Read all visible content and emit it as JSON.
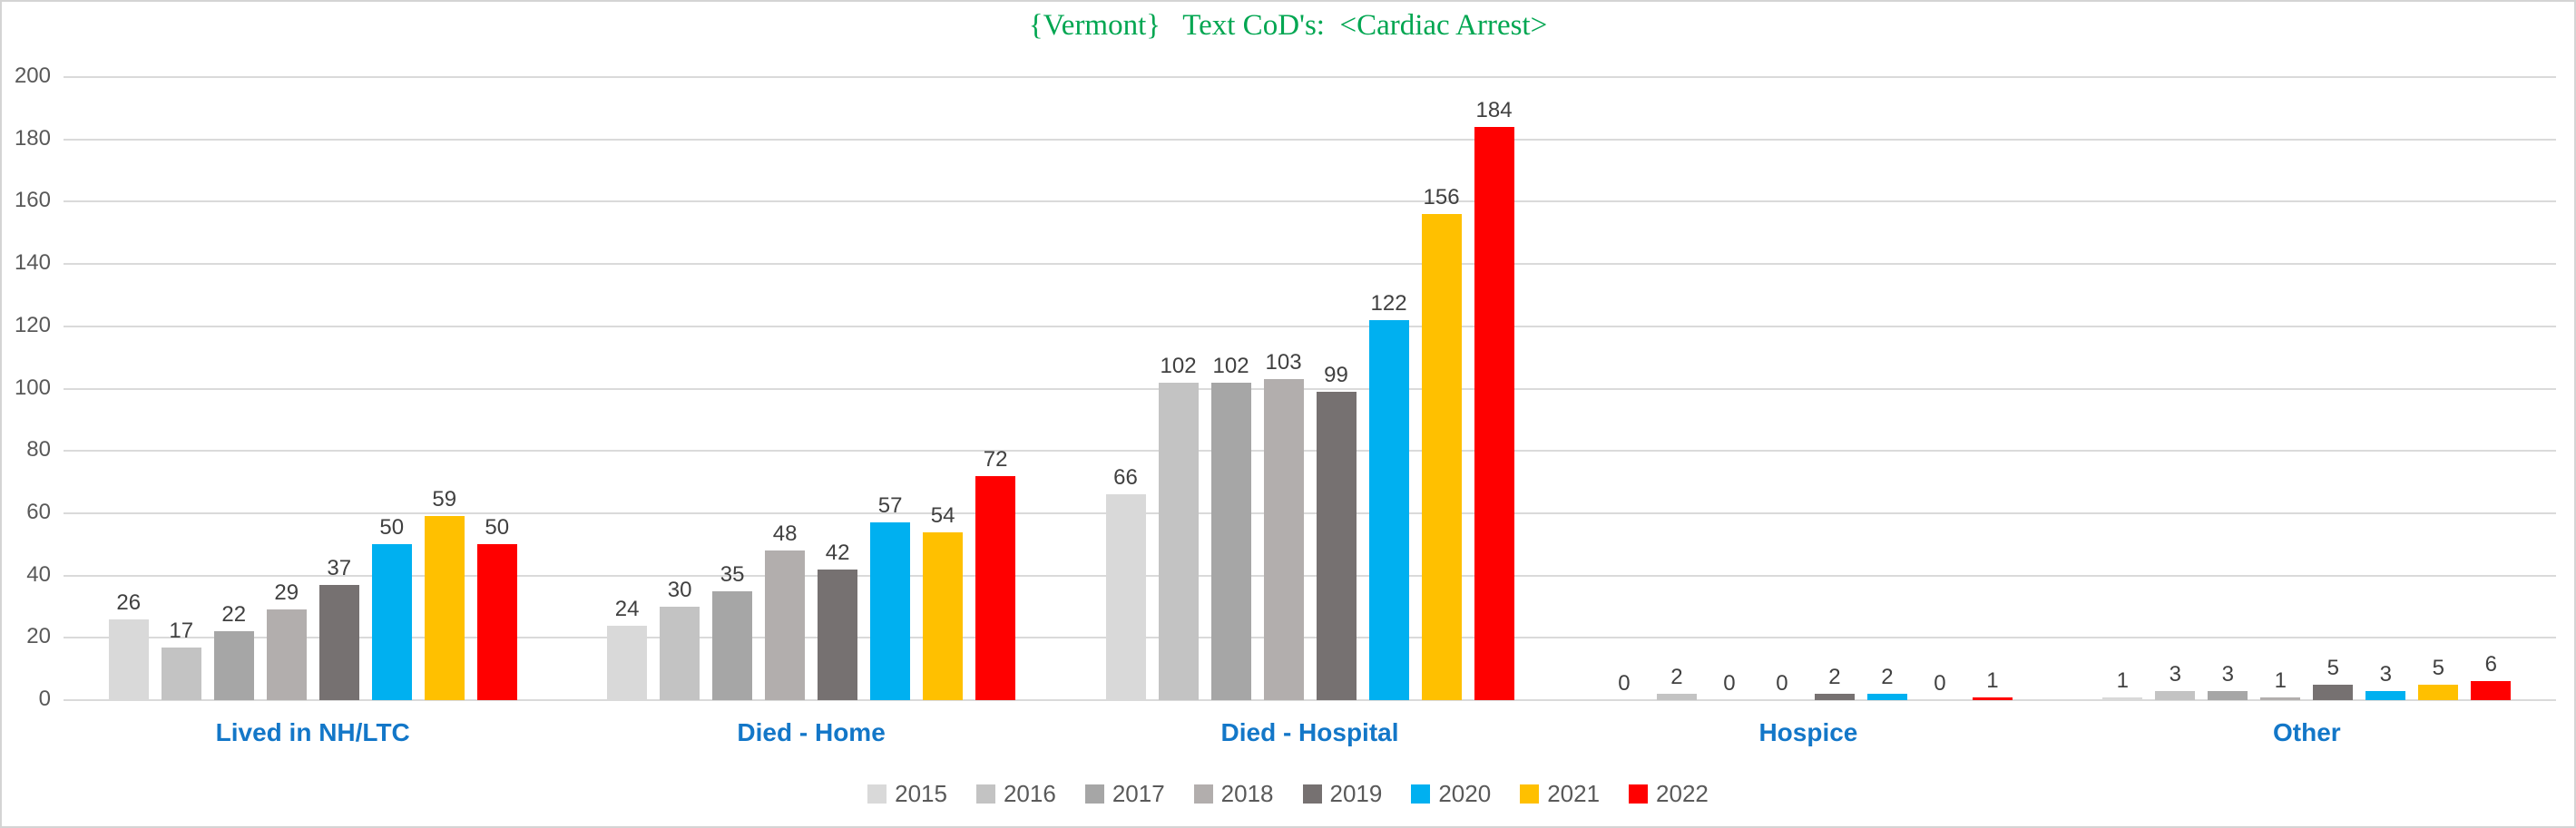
{
  "title": {
    "text": "{Vermont}   Text CoD's:  <Cardiac Arrest>",
    "color": "#00A651"
  },
  "chart_data": {
    "type": "bar",
    "title": "{Vermont}   Text CoD's:  <Cardiac Arrest>",
    "categories": [
      "Lived in NH/LTC",
      "Died - Home",
      "Died - Hospital",
      "Hospice",
      "Other"
    ],
    "series": [
      {
        "name": "2015",
        "color": "#D9D9D9",
        "values": [
          26,
          24,
          66,
          0,
          1
        ]
      },
      {
        "name": "2016",
        "color": "#C3C3C3",
        "values": [
          17,
          30,
          102,
          2,
          3
        ]
      },
      {
        "name": "2017",
        "color": "#A6A6A6",
        "values": [
          22,
          35,
          102,
          0,
          3
        ]
      },
      {
        "name": "2018",
        "color": "#B2AEAD",
        "values": [
          29,
          48,
          103,
          0,
          1
        ]
      },
      {
        "name": "2019",
        "color": "#767171",
        "values": [
          37,
          42,
          99,
          2,
          5
        ]
      },
      {
        "name": "2020",
        "color": "#00B0F0",
        "values": [
          50,
          57,
          122,
          2,
          3
        ]
      },
      {
        "name": "2021",
        "color": "#FFC000",
        "values": [
          59,
          54,
          156,
          0,
          5
        ]
      },
      {
        "name": "2022",
        "color": "#FF0000",
        "values": [
          50,
          72,
          184,
          1,
          6
        ]
      }
    ],
    "xlabel": "",
    "ylabel": "",
    "ylim": [
      0,
      200
    ],
    "yticks": [
      0,
      20,
      40,
      60,
      80,
      100,
      120,
      140,
      160,
      180,
      200
    ],
    "grid": "horizontal",
    "legend_position": "bottom"
  },
  "style_colors": {
    "gridline": "#dadada",
    "tick_label": "#595959",
    "data_label": "#404040",
    "category_label": "#1377C8",
    "legend_text": "#595959"
  }
}
